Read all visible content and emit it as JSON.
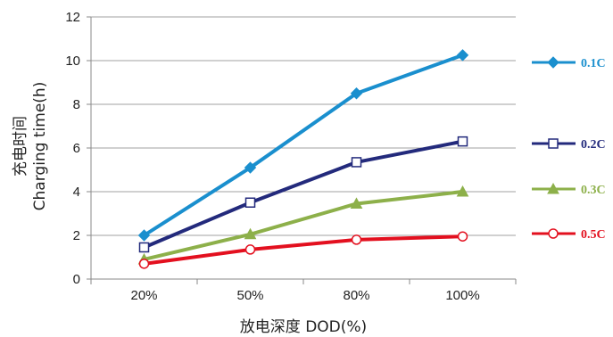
{
  "chart_data": {
    "type": "line",
    "title": "",
    "xlabel": "放电深度 DOD(%)",
    "ylabel": "充电时间",
    "ylabel2": "Charging time(h)",
    "categories": [
      "20%",
      "50%",
      "80%",
      "100%"
    ],
    "ylim": [
      0,
      12
    ],
    "yticks": [
      "0",
      "2",
      "4",
      "6",
      "8",
      "10",
      "12"
    ],
    "grid": "horizontal",
    "legend_position": "right",
    "series": [
      {
        "name": "0.1C",
        "values": [
          2.0,
          5.1,
          8.5,
          10.25
        ],
        "color": "#1a8fce",
        "marker": "diamond"
      },
      {
        "name": "0.2C",
        "values": [
          1.45,
          3.5,
          5.35,
          6.3
        ],
        "color": "#232a7c",
        "marker": "square"
      },
      {
        "name": "0.3C",
        "values": [
          0.9,
          2.05,
          3.45,
          4.0
        ],
        "color": "#8db04a",
        "marker": "triangle"
      },
      {
        "name": "0.5C",
        "values": [
          0.7,
          1.35,
          1.8,
          1.95
        ],
        "color": "#e3101f",
        "marker": "circle"
      }
    ]
  }
}
